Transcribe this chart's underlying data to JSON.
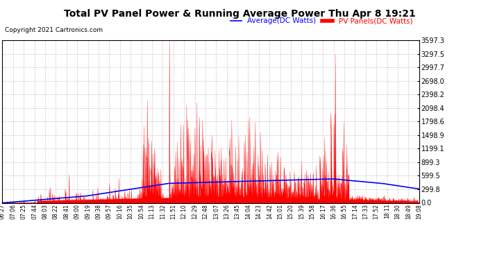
{
  "title": "Total PV Panel Power & Running Average Power Thu Apr 8 19:21",
  "copyright": "Copyright 2021 Cartronics.com",
  "legend_avg": "Average(DC Watts)",
  "legend_pv": "PV Panels(DC Watts)",
  "ymax": 3597.3,
  "ymin": 0.0,
  "yticks": [
    0.0,
    299.8,
    599.5,
    899.3,
    1199.1,
    1498.9,
    1798.6,
    2098.4,
    2398.2,
    2698.0,
    2997.7,
    3297.5,
    3597.3
  ],
  "bg_color": "#ffffff",
  "grid_color": "#c8c8c8",
  "pv_color": "#ff0000",
  "avg_color": "#0000ff",
  "title_color": "#000000",
  "copyright_color": "#000000",
  "xtick_labels": [
    "06:27",
    "07:06",
    "07:25",
    "07:44",
    "08:03",
    "08:22",
    "08:41",
    "09:00",
    "09:19",
    "09:38",
    "09:57",
    "10:16",
    "10:35",
    "10:54",
    "11:13",
    "11:32",
    "11:51",
    "12:10",
    "12:29",
    "12:48",
    "13:07",
    "13:26",
    "13:45",
    "14:04",
    "14:23",
    "14:42",
    "15:01",
    "15:20",
    "15:39",
    "15:58",
    "16:17",
    "16:36",
    "16:55",
    "17:14",
    "17:33",
    "17:52",
    "18:11",
    "18:30",
    "18:49",
    "19:08"
  ]
}
